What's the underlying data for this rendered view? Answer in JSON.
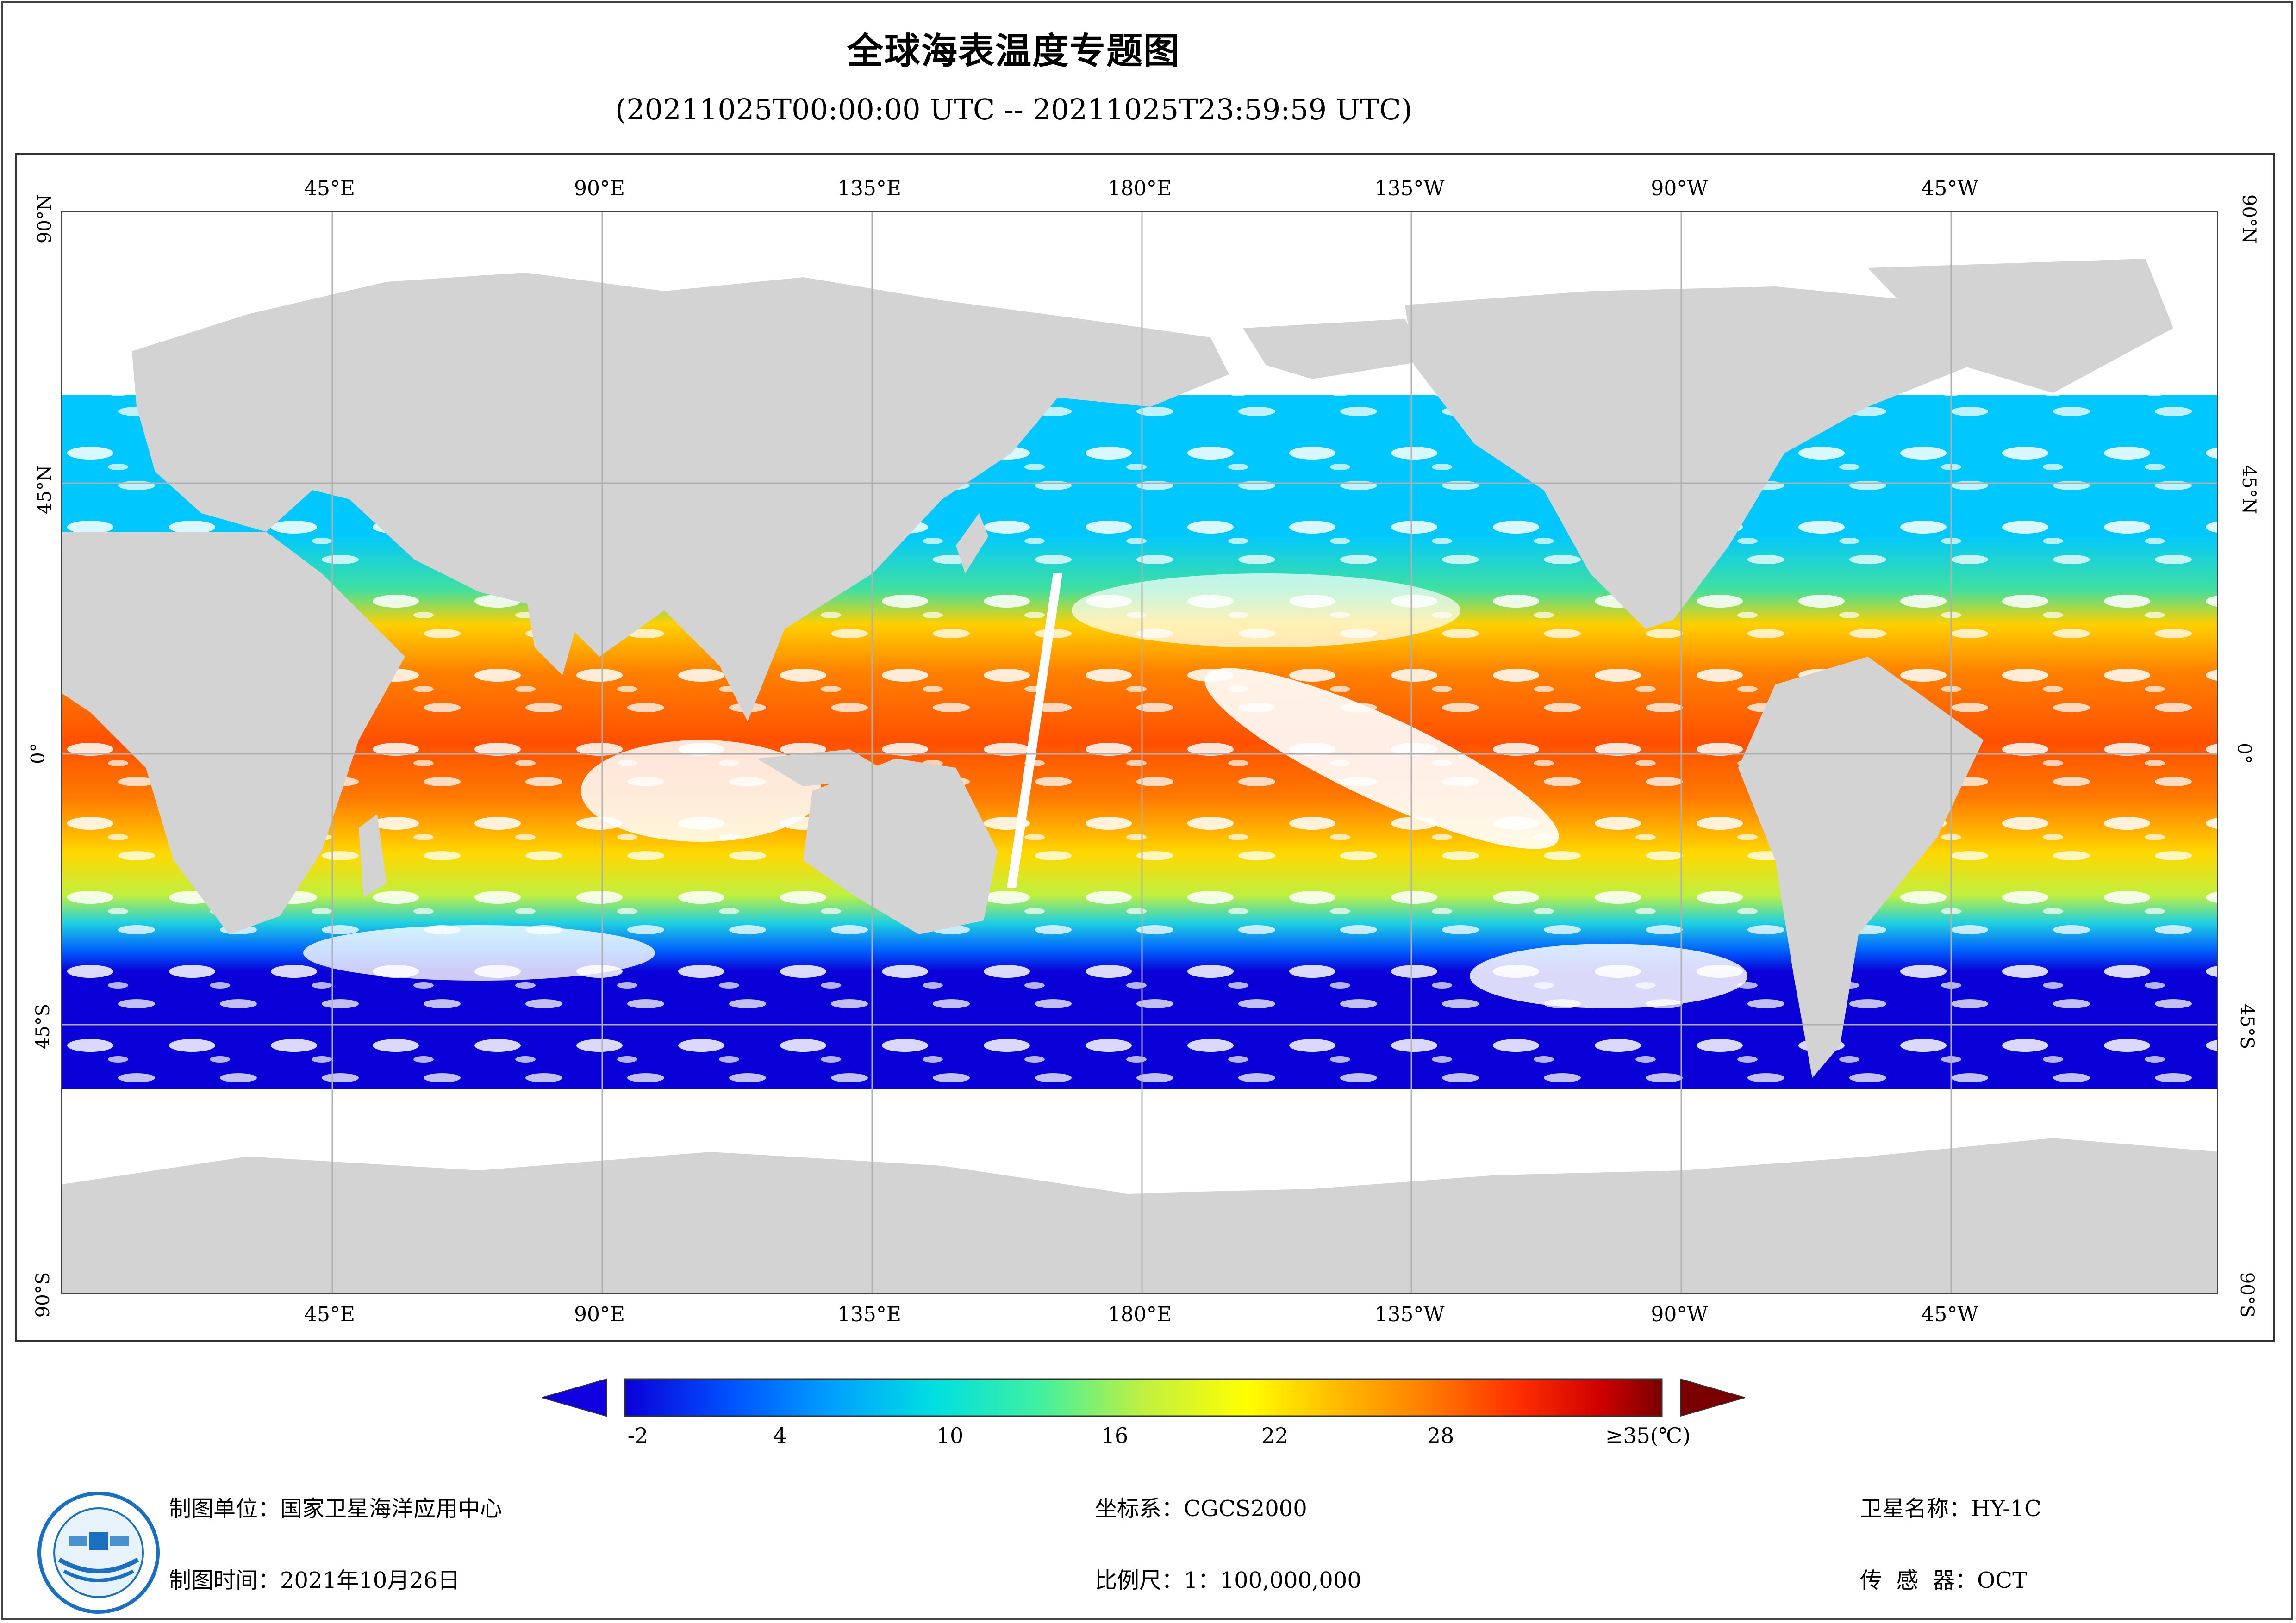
{
  "title": "全球海表温度专题图",
  "subtitle": "(20211025T00:00:00 UTC -- 20211025T23:59:59 UTC)",
  "map": {
    "longitude_labels": [
      "45°E",
      "90°E",
      "135°E",
      "180°E",
      "135°W",
      "90°W",
      "45°W"
    ],
    "latitude_labels": [
      "90°N",
      "45°N",
      "0°",
      "45°S",
      "90°S"
    ]
  },
  "colorbar": {
    "tick_labels": [
      "-2",
      "4",
      "10",
      "16",
      "22",
      "28",
      "≥35(℃)"
    ],
    "min": -2,
    "max": 35,
    "unit": "℃",
    "colors": [
      "#0a00d8",
      "#0050ff",
      "#00a0ff",
      "#00e0e0",
      "#40f0a0",
      "#c0f040",
      "#ffff00",
      "#ffc000",
      "#ff8000",
      "#ff3000",
      "#d00000",
      "#7a0000"
    ]
  },
  "footer": {
    "unit": "制图单位：国家卫星海洋应用中心",
    "time": "制图时间：2021年10月26日",
    "crs": "坐标系：CGCS2000",
    "scale": "比例尺：1：100,000,000",
    "satellite": "卫星名称：HY-1C",
    "sensor": "传  感  器：OCT"
  },
  "colors": {
    "land": "#d3d3d3",
    "grid": "#b0b0b0",
    "cloud": "#ffffff"
  }
}
